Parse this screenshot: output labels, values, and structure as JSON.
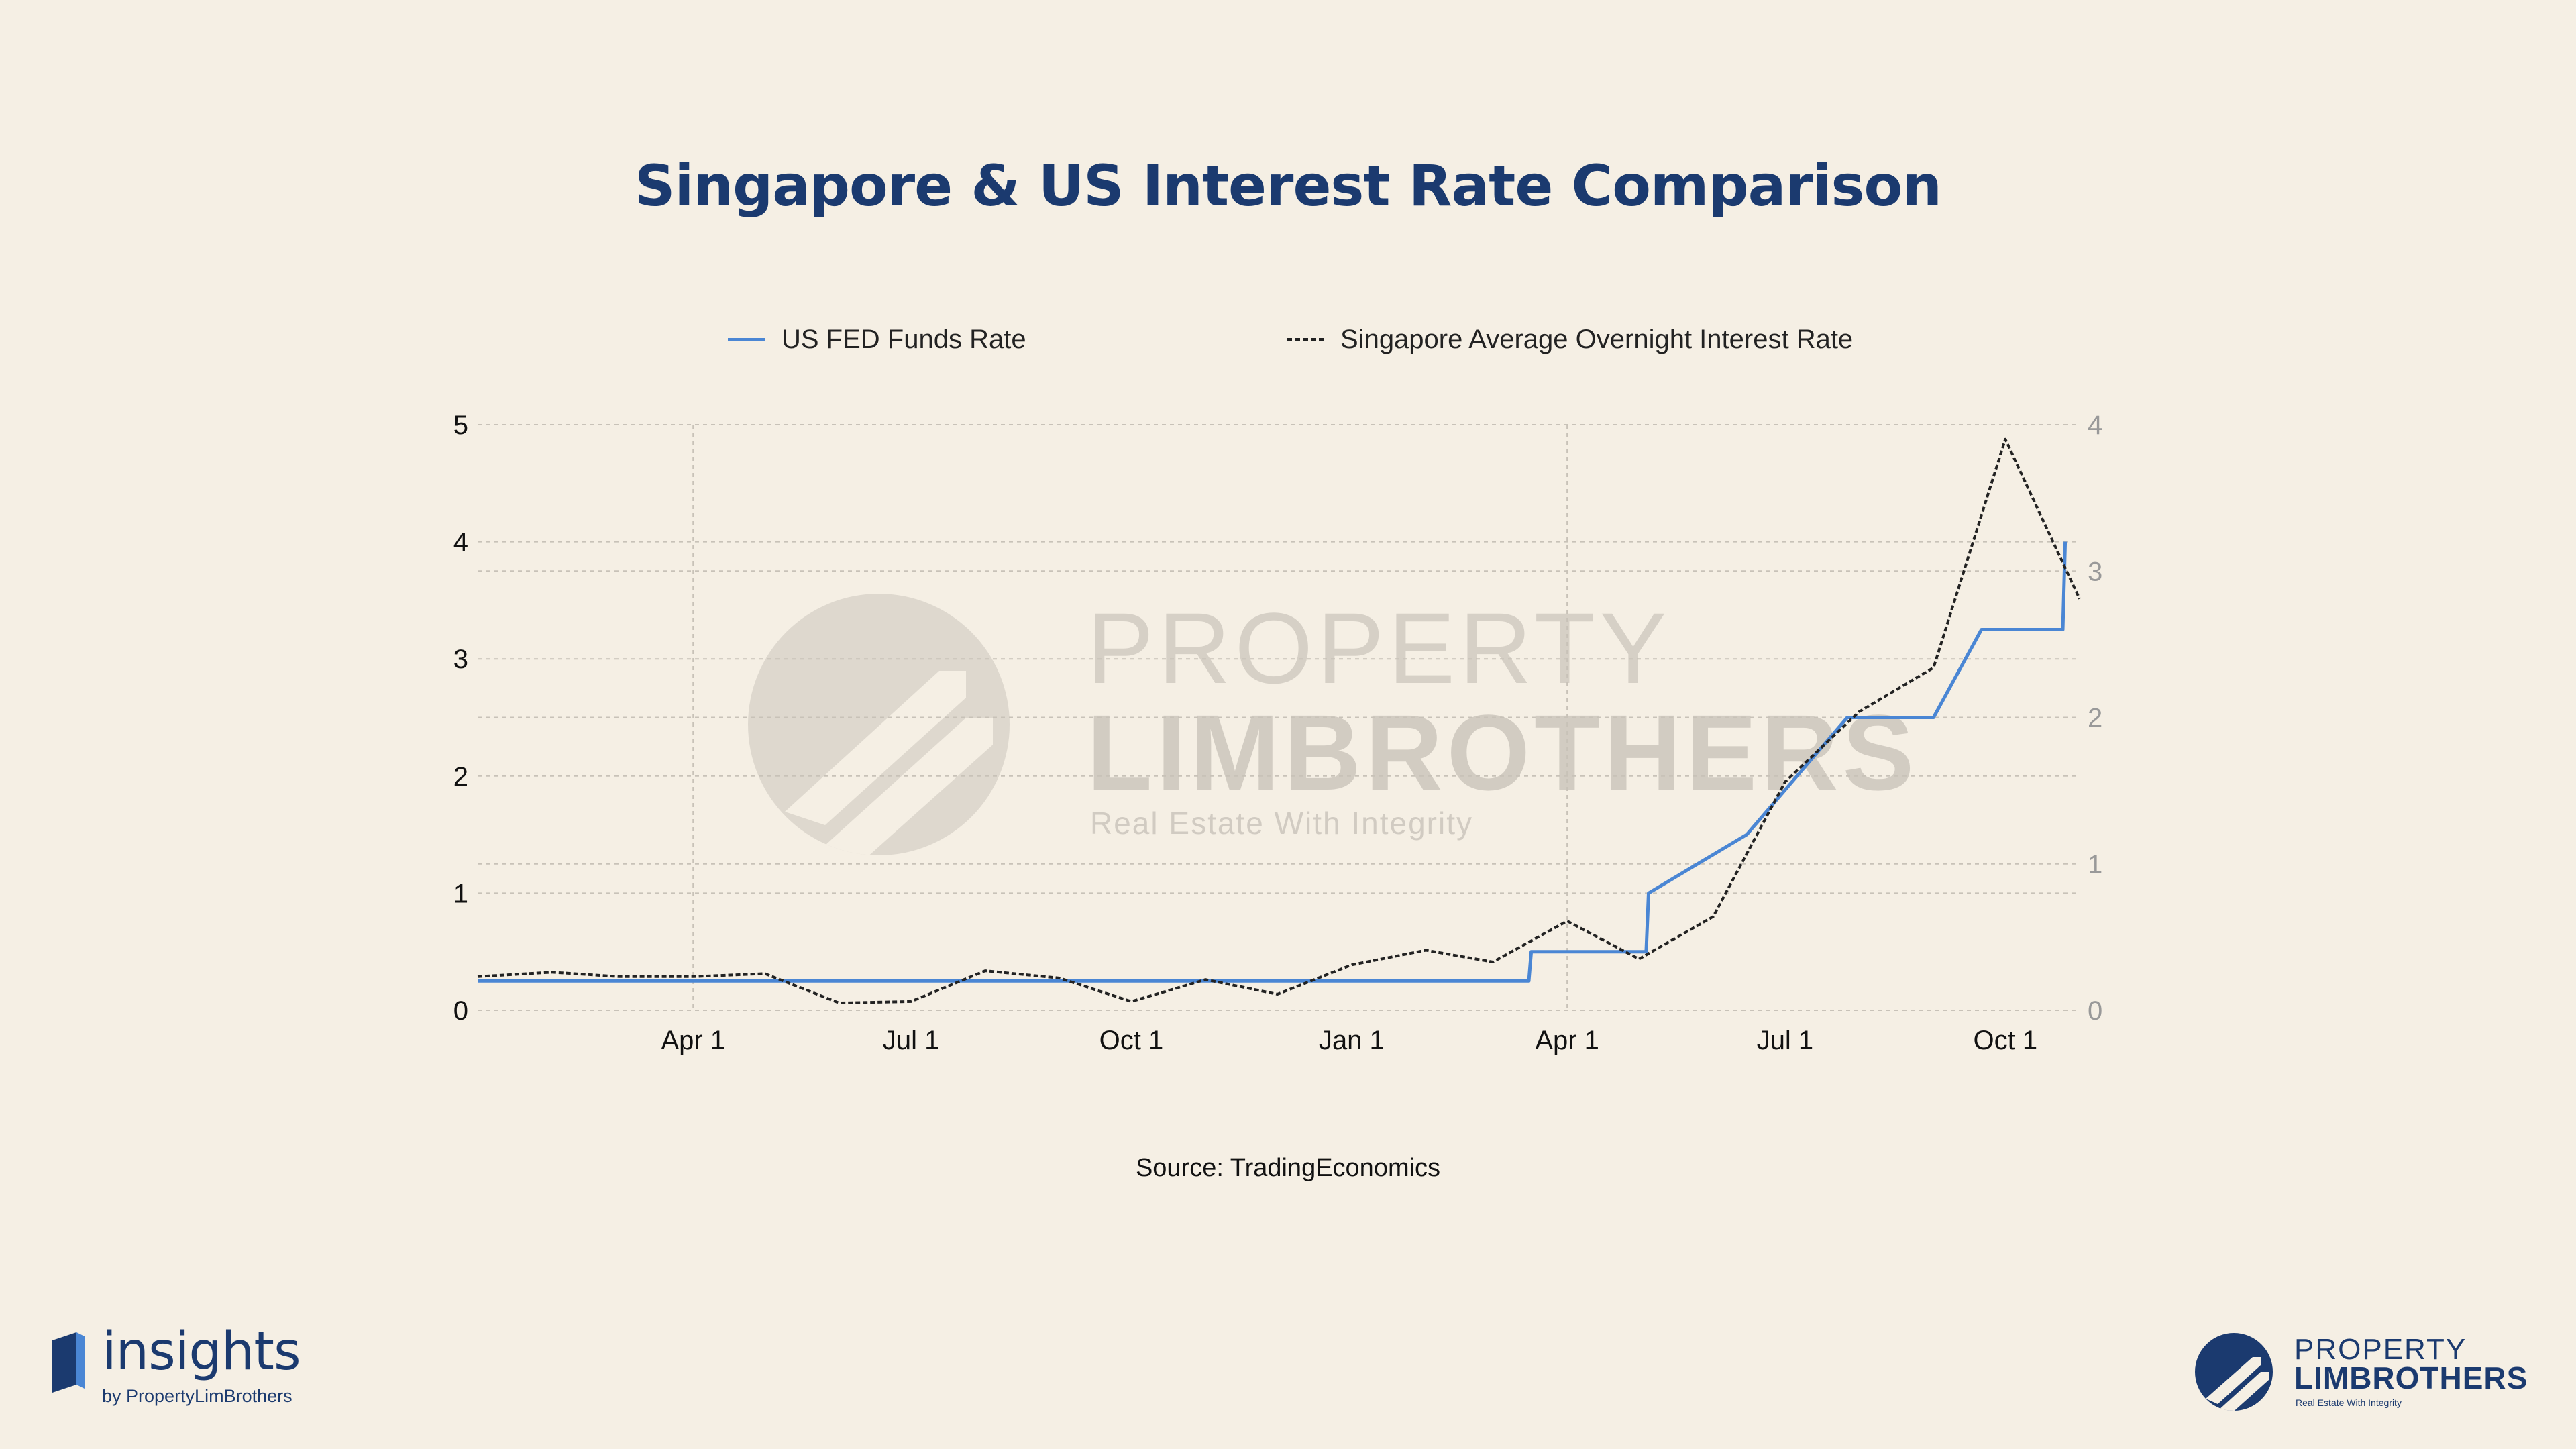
{
  "header": {
    "title": "Singapore & US Interest Rate Comparison"
  },
  "colors": {
    "background": "#f5efe4",
    "title": "#1b3a6f",
    "us_series": "#4a86d4",
    "sg_series": "#222222",
    "grid": "#c8c2b8"
  },
  "legend": {
    "us_label": "US FED Funds Rate",
    "sg_label": "Singapore Average Overnight Interest Rate"
  },
  "watermark": {
    "line1": "PROPERTY",
    "line2": "LIMBROTHERS",
    "line3": "Real Estate With Integrity",
    "icon": "property-limbrothers-logo-icon"
  },
  "source": "Source: TradingEconomics",
  "branding": {
    "left_word": "insights",
    "left_sub": "by PropertyLimBrothers",
    "left_icon": "insights-book-icon",
    "right_line1": "PROPERTY",
    "right_line2": "LIMBROTHERS",
    "right_line3": "Real Estate With Integrity",
    "right_icon": "property-limbrothers-logo-icon"
  },
  "chart_data": {
    "type": "line",
    "title": "Singapore & US Interest Rate Comparison",
    "x_tick_labels": [
      "Apr 1",
      "Jul 1",
      "Oct 1",
      "Jan 1",
      "Apr 1",
      "Jul 1",
      "Oct 1"
    ],
    "x_tick_dates": [
      "2021-04-01",
      "2021-07-01",
      "2021-10-01",
      "2022-01-01",
      "2022-04-01",
      "2022-07-01",
      "2022-10-01"
    ],
    "x_range": [
      "2021-01-01",
      "2022-11-01"
    ],
    "y_left": {
      "min": 0,
      "max": 5,
      "ticks": [
        0,
        1,
        2,
        3,
        4,
        5
      ]
    },
    "y_right": {
      "min": 0,
      "max": 4,
      "ticks": [
        0,
        1,
        2,
        3,
        4
      ]
    },
    "grid": true,
    "legend_position": "top",
    "series": [
      {
        "name": "US FED Funds Rate",
        "axis": "left",
        "style": "solid",
        "points": [
          {
            "x": "2021-01-01",
            "y": 0.25
          },
          {
            "x": "2022-03-16",
            "y": 0.25
          },
          {
            "x": "2022-03-17",
            "y": 0.5
          },
          {
            "x": "2022-05-04",
            "y": 0.5
          },
          {
            "x": "2022-05-05",
            "y": 1.0
          },
          {
            "x": "2022-06-15",
            "y": 1.5
          },
          {
            "x": "2022-07-27",
            "y": 2.5
          },
          {
            "x": "2022-09-01",
            "y": 2.5
          },
          {
            "x": "2022-09-21",
            "y": 3.25
          },
          {
            "x": "2022-10-25",
            "y": 3.25
          },
          {
            "x": "2022-10-26",
            "y": 4.0
          }
        ]
      },
      {
        "name": "Singapore Average Overnight Interest Rate",
        "axis": "right",
        "style": "dashed",
        "points": [
          {
            "x": "2021-01-01",
            "y": 0.23
          },
          {
            "x": "2021-02-01",
            "y": 0.26
          },
          {
            "x": "2021-03-01",
            "y": 0.23
          },
          {
            "x": "2021-04-01",
            "y": 0.23
          },
          {
            "x": "2021-05-01",
            "y": 0.25
          },
          {
            "x": "2021-06-01",
            "y": 0.05
          },
          {
            "x": "2021-07-01",
            "y": 0.06
          },
          {
            "x": "2021-08-01",
            "y": 0.27
          },
          {
            "x": "2021-09-01",
            "y": 0.22
          },
          {
            "x": "2021-10-01",
            "y": 0.06
          },
          {
            "x": "2021-11-01",
            "y": 0.21
          },
          {
            "x": "2021-12-01",
            "y": 0.11
          },
          {
            "x": "2022-01-01",
            "y": 0.31
          },
          {
            "x": "2022-02-01",
            "y": 0.41
          },
          {
            "x": "2022-03-01",
            "y": 0.33
          },
          {
            "x": "2022-04-01",
            "y": 0.61
          },
          {
            "x": "2022-05-01",
            "y": 0.35
          },
          {
            "x": "2022-06-01",
            "y": 0.64
          },
          {
            "x": "2022-07-01",
            "y": 1.56
          },
          {
            "x": "2022-08-01",
            "y": 2.04
          },
          {
            "x": "2022-09-01",
            "y": 2.34
          },
          {
            "x": "2022-10-01",
            "y": 3.9
          },
          {
            "x": "2022-11-01",
            "y": 2.81
          }
        ]
      }
    ]
  }
}
